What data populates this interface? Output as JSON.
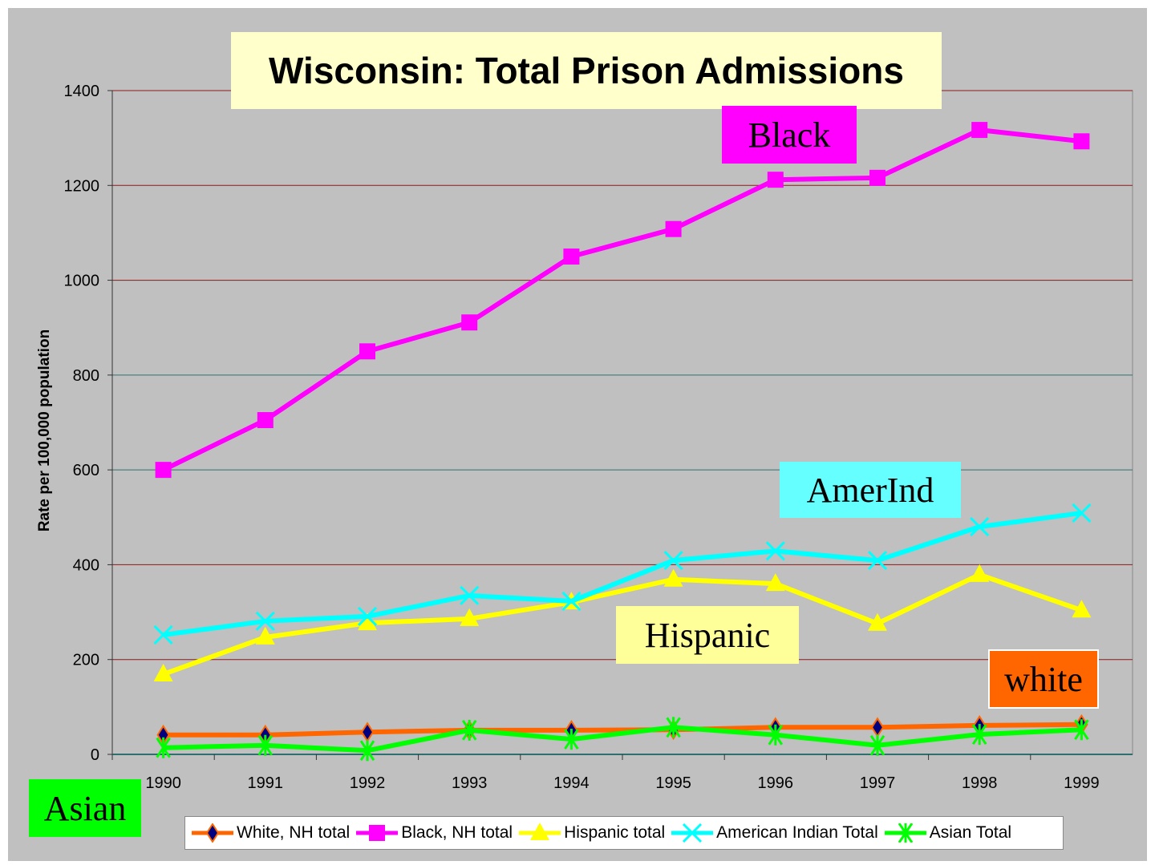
{
  "chart_data": {
    "type": "line",
    "title": "Wisconsin: Total Prison Admissions",
    "xlabel": "",
    "ylabel": "Rate per 100,000 population",
    "ylim": [
      0,
      1400
    ],
    "yticks": [
      0,
      200,
      400,
      600,
      800,
      1000,
      1200,
      1400
    ],
    "grid": true,
    "legend_position": "bottom",
    "categories": [
      "1990",
      "1991",
      "1992",
      "1993",
      "1994",
      "1995",
      "1996",
      "1997",
      "1998",
      "1999"
    ],
    "series": [
      {
        "name": "White, NH total",
        "color": "#ff6600",
        "marker": "diamond",
        "values": [
          41,
          41,
          47,
          51,
          51,
          52,
          57,
          57,
          61,
          63
        ]
      },
      {
        "name": "Black, NH total",
        "color": "#ff00ff",
        "marker": "square",
        "values": [
          600,
          705,
          850,
          911,
          1050,
          1108,
          1212,
          1216,
          1317,
          1293
        ]
      },
      {
        "name": "Hispanic total",
        "color": "#ffff00",
        "marker": "triangle",
        "values": [
          169,
          247,
          277,
          286,
          321,
          369,
          360,
          276,
          379,
          304
        ]
      },
      {
        "name": "American Indian Total",
        "color": "#00ffff",
        "marker": "x",
        "values": [
          252,
          281,
          291,
          335,
          323,
          409,
          429,
          409,
          480,
          509
        ]
      },
      {
        "name": "Asian Total",
        "color": "#00ff00",
        "marker": "star",
        "values": [
          14,
          19,
          8,
          51,
          32,
          57,
          41,
          19,
          42,
          52
        ]
      }
    ],
    "annotations": [
      {
        "text": "Black",
        "color": "#ff00ff"
      },
      {
        "text": "AmerInd",
        "color": "#66ffff"
      },
      {
        "text": "Hispanic",
        "color": "#ffff99"
      },
      {
        "text": "white",
        "color": "#ff6600"
      },
      {
        "text": "Asian",
        "color": "#00ff00"
      }
    ]
  }
}
